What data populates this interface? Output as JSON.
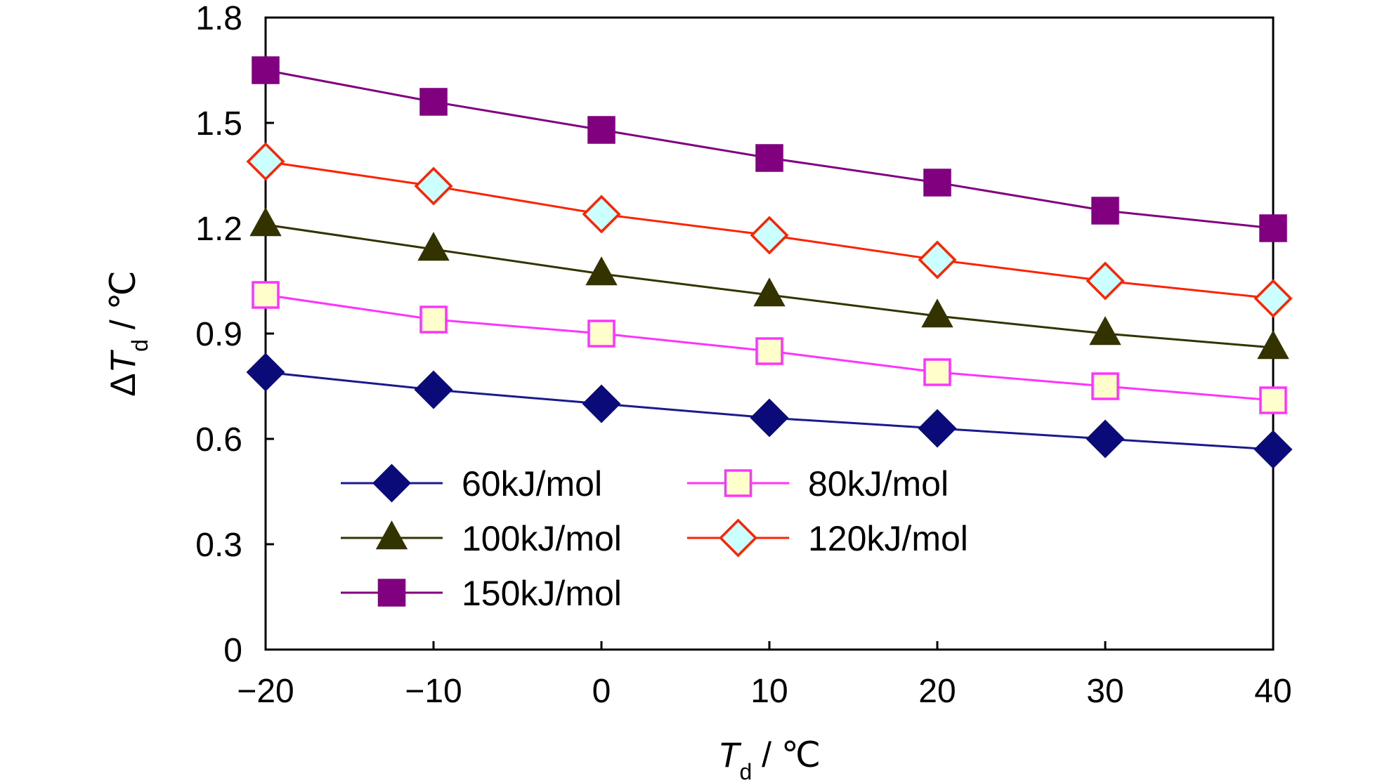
{
  "chart_data": {
    "type": "line",
    "x": [
      -20,
      -10,
      0,
      10,
      20,
      30,
      40
    ],
    "xticks": [
      "−20",
      "−10",
      "0",
      "10",
      "20",
      "30",
      "40"
    ],
    "yticks": [
      "0",
      "0.3",
      "0.6",
      "0.9",
      "1.2",
      "1.5",
      "1.8"
    ],
    "xlim": [
      -20,
      40
    ],
    "ylim": [
      0,
      1.8
    ],
    "xlabel": {
      "main": "T",
      "sub": "d",
      "unit": " / ℃"
    },
    "ylabel": {
      "prefix": "Δ",
      "main": "T",
      "sub": "d",
      "unit": " / ℃"
    },
    "grid": false,
    "legend_position": "lower-left-inside",
    "series": [
      {
        "name": "60kJ/mol",
        "values": [
          0.79,
          0.74,
          0.7,
          0.66,
          0.63,
          0.6,
          0.57
        ],
        "marker": "diamond",
        "line_color": "#1a1a8c",
        "marker_fill": "#0a0a78",
        "marker_stroke": "#0a0a78"
      },
      {
        "name": "80kJ/mol",
        "values": [
          1.01,
          0.94,
          0.9,
          0.85,
          0.79,
          0.75,
          0.71
        ],
        "marker": "square-open",
        "line_color": "#ff33ff",
        "marker_fill": "#ffffcc",
        "marker_stroke": "#ff33ff"
      },
      {
        "name": "100kJ/mol",
        "values": [
          1.21,
          1.14,
          1.07,
          1.01,
          0.95,
          0.9,
          0.86
        ],
        "marker": "triangle",
        "line_color": "#333300",
        "marker_fill": "#333300",
        "marker_stroke": "#333300"
      },
      {
        "name": "120kJ/mol",
        "values": [
          1.39,
          1.32,
          1.24,
          1.18,
          1.11,
          1.05,
          1.0
        ],
        "marker": "diamond-open",
        "line_color": "#ff2200",
        "marker_fill": "#ccffff",
        "marker_stroke": "#ff2200"
      },
      {
        "name": "150kJ/mol",
        "values": [
          1.65,
          1.56,
          1.48,
          1.4,
          1.33,
          1.25,
          1.2
        ],
        "marker": "square",
        "line_color": "#800080",
        "marker_fill": "#800080",
        "marker_stroke": "#800080"
      }
    ],
    "legend_order": [
      0,
      1,
      2,
      3,
      4
    ]
  }
}
